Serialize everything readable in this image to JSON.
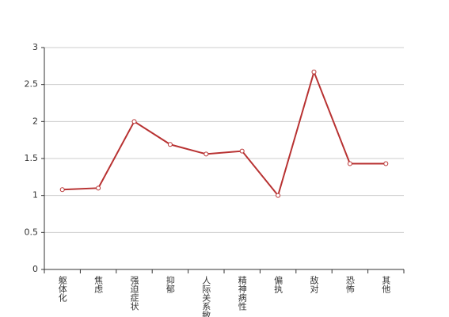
{
  "chart_data": {
    "type": "line",
    "categories": [
      "躯体化",
      "焦虑",
      "强迫症状",
      "抑郁",
      "人际关系敏感",
      "精神病性",
      "偏执",
      "敌对",
      "恐怖",
      "其他"
    ],
    "values": [
      1.08,
      1.1,
      2.0,
      1.69,
      1.56,
      1.6,
      1.0,
      2.67,
      1.43,
      1.43
    ],
    "color": "#b83232",
    "ylim": [
      0,
      3
    ],
    "yticks": [
      0,
      0.5,
      1,
      1.5,
      2,
      2.5,
      3
    ],
    "grid": true
  }
}
